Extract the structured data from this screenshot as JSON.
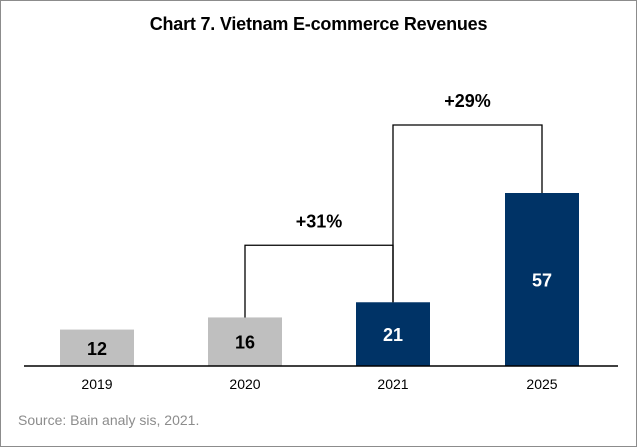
{
  "chart_data": {
    "type": "bar",
    "title": "Chart 7. Vietnam E-commerce Revenues",
    "categories": [
      "2019",
      "2020",
      "2021",
      "2025"
    ],
    "values": [
      12,
      16,
      21,
      57
    ],
    "bar_colors": [
      "#bfbfbf",
      "#bfbfbf",
      "#003366",
      "#003366"
    ],
    "label_colors": [
      "#000000",
      "#000000",
      "#ffffff",
      "#ffffff"
    ],
    "xlabel": "",
    "ylabel": "",
    "ylim": [
      0,
      60
    ],
    "grid": false,
    "annotations": [
      {
        "from": "2020",
        "to": "2021",
        "text": "+31%"
      },
      {
        "from": "2021",
        "to": "2025",
        "text": "+29%"
      }
    ]
  },
  "source": "Source: Bain analy sis, 2021."
}
